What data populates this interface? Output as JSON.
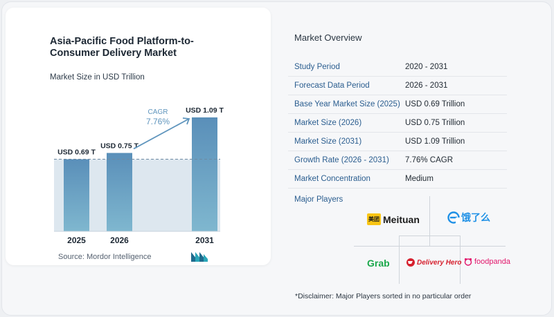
{
  "chart": {
    "title": "Asia-Pacific Food Platform-to-Consumer Delivery Market",
    "subtitle": "Market Size in USD Trillion",
    "source": "Source:  Mordor Intelligence",
    "cagr_label": "CAGR",
    "cagr_value": "7.76%"
  },
  "chart_data": {
    "type": "bar",
    "title": "Asia-Pacific Food Platform-to-Consumer Delivery Market",
    "subtitle": "Market Size in USD Trillion",
    "categories": [
      "2025",
      "2026",
      "2031"
    ],
    "values": [
      0.69,
      0.75,
      1.09
    ],
    "value_labels": [
      "USD 0.69 T",
      "USD 0.75 T",
      "USD 1.09 T"
    ],
    "unit": "USD Trillion",
    "xlabel": "",
    "ylabel": "",
    "ylim": [
      0,
      1.09
    ],
    "reference_line_value": 0.69,
    "grid": false,
    "legend": "none",
    "colors": {
      "bar": "#5f95bd",
      "bar_light": "#dde7ef",
      "arrow": "#5f95bd",
      "cagr": "#5f95bd"
    }
  },
  "overview": {
    "title": "Market Overview",
    "rows": [
      {
        "label": "Study Period",
        "value": "2020 - 2031"
      },
      {
        "label": "Forecast Data Period",
        "value": "2026 - 2031"
      },
      {
        "label": "Base Year Market Size (2025)",
        "value": "USD 0.69 Trillion"
      },
      {
        "label": "Market Size (2026)",
        "value": "USD 0.75 Trillion"
      },
      {
        "label": "Market Size (2031)",
        "value": "USD 1.09 Trillion"
      },
      {
        "label": "Growth Rate (2026 - 2031)",
        "value": "7.76% CAGR"
      },
      {
        "label": "Market Concentration",
        "value": "Medium"
      }
    ]
  },
  "players": {
    "title": "Major Players",
    "meituan_badge": "美团",
    "meituan": "Meituan",
    "eleme": "饿了么",
    "grab": "Grab",
    "delivery_hero": "Delivery Hero",
    "foodpanda": "foodpanda"
  },
  "disclaimer": "*Disclaimer: Major Players sorted in no particular order"
}
